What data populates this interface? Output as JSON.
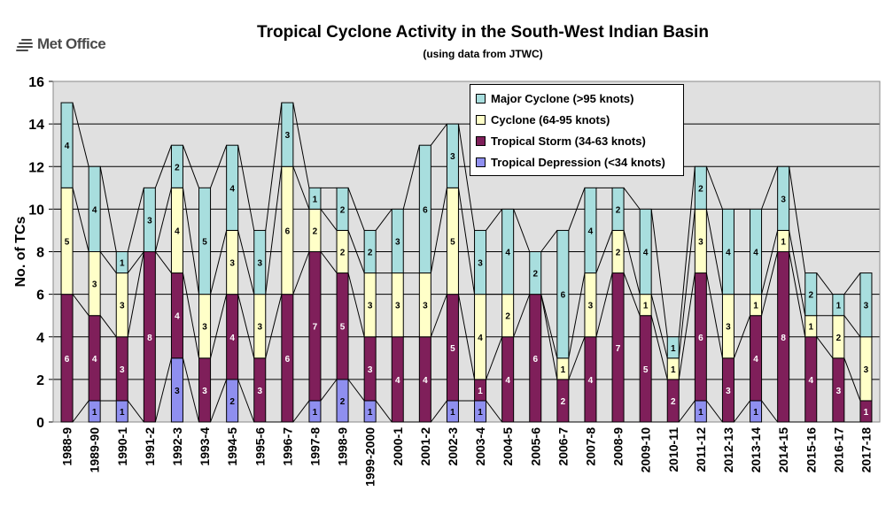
{
  "header": {
    "logo_text": "Met Office",
    "title": "Tropical Cyclone Activity in the South-West Indian Basin",
    "subtitle": "(using data from JTWC)"
  },
  "colors": {
    "major": "#a8dede",
    "cyclone": "#ffffc8",
    "storm": "#7f1f5a",
    "depression": "#8f8fef",
    "plot_bg": "#e0e0e0",
    "grid": "#000000"
  },
  "chart_data": {
    "type": "bar",
    "stacked": true,
    "title": "Tropical Cyclone Activity in the South-West Indian Basin",
    "subtitle": "(using data from JTWC)",
    "xlabel": "",
    "ylabel": "No. of TCs",
    "ylim": [
      0,
      16
    ],
    "yticks": [
      0,
      2,
      4,
      6,
      8,
      10,
      12,
      14,
      16
    ],
    "grid": true,
    "legend_position": "top-center",
    "categories": [
      "1988-9",
      "1989-90",
      "1990-1",
      "1991-2",
      "1992-3",
      "1993-4",
      "1994-5",
      "1995-6",
      "1996-7",
      "1997-8",
      "1998-9",
      "1999-2000",
      "2000-1",
      "2001-2",
      "2002-3",
      "2003-4",
      "2004-5",
      "2005-6",
      "2006-7",
      "2007-8",
      "2008-9",
      "2009-10",
      "2010-11",
      "2011-12",
      "2012-13",
      "2013-14",
      "2014-15",
      "2015-16",
      "2016-17",
      "2017-18"
    ],
    "series": [
      {
        "key": "depression",
        "name": "Tropical Depression (<34 knots)",
        "values": [
          0,
          1,
          1,
          0,
          3,
          0,
          2,
          0,
          0,
          1,
          2,
          1,
          0,
          0,
          1,
          1,
          0,
          0,
          0,
          0,
          0,
          0,
          0,
          1,
          0,
          1,
          0,
          0,
          0,
          0
        ]
      },
      {
        "key": "storm",
        "name": "Tropical Storm (34-63 knots)",
        "values": [
          6,
          4,
          3,
          8,
          4,
          3,
          4,
          3,
          6,
          7,
          5,
          3,
          4,
          4,
          5,
          1,
          4,
          6,
          2,
          4,
          7,
          5,
          2,
          6,
          3,
          4,
          8,
          4,
          3,
          1
        ]
      },
      {
        "key": "cyclone",
        "name": "Cyclone (64-95 knots)",
        "values": [
          5,
          3,
          3,
          0,
          4,
          3,
          3,
          3,
          6,
          2,
          2,
          3,
          3,
          3,
          5,
          4,
          2,
          0,
          1,
          3,
          2,
          1,
          1,
          3,
          3,
          1,
          1,
          1,
          2,
          3
        ]
      },
      {
        "key": "major",
        "name": "Major Cyclone (>95 knots)",
        "values": [
          4,
          4,
          1,
          3,
          2,
          5,
          4,
          3,
          3,
          1,
          2,
          2,
          3,
          6,
          3,
          3,
          4,
          2,
          6,
          4,
          2,
          4,
          1,
          2,
          4,
          4,
          3,
          2,
          1,
          3
        ]
      }
    ]
  }
}
